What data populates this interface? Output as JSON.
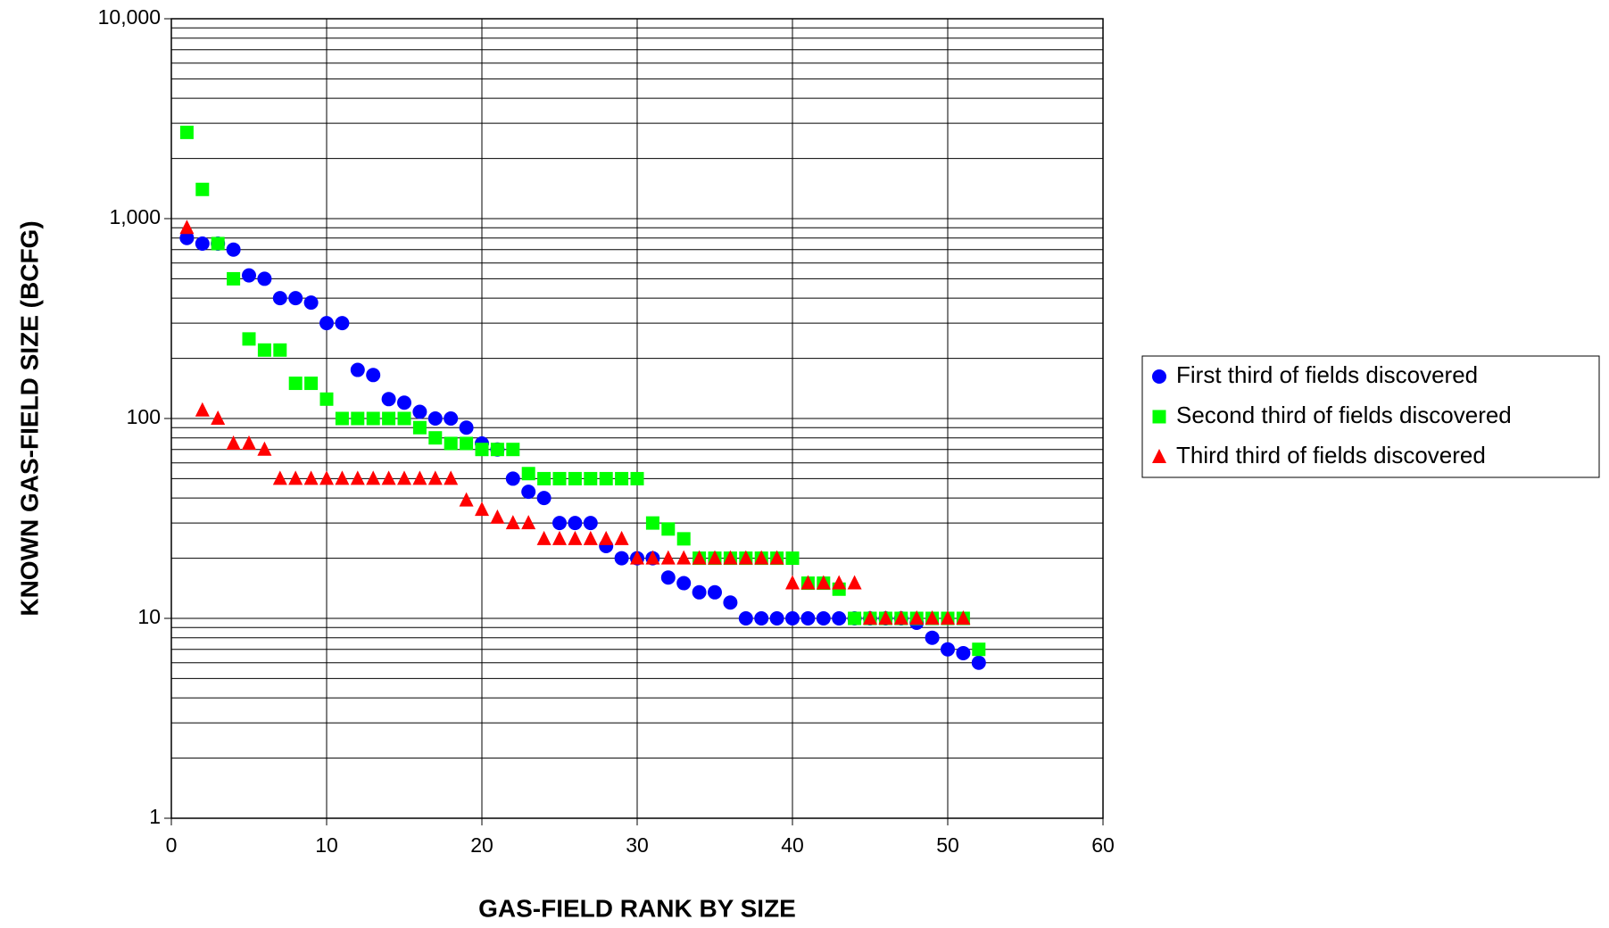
{
  "chart_data": {
    "type": "scatter",
    "x_label": "GAS-FIELD RANK BY SIZE",
    "y_label": "KNOWN GAS-FIELD SIZE (BCFG)",
    "x": [
      1,
      2,
      3,
      4,
      5,
      6,
      7,
      8,
      9,
      10,
      11,
      12,
      13,
      14,
      15,
      16,
      17,
      18,
      19,
      20,
      21,
      22,
      23,
      24,
      25,
      26,
      27,
      28,
      29,
      30,
      31,
      32,
      33,
      34,
      35,
      36,
      37,
      38,
      39,
      40,
      41,
      42,
      43,
      44,
      45,
      46,
      47,
      48,
      49,
      50,
      51,
      52
    ],
    "series": [
      {
        "name": "First third of fields discovered",
        "color": "#0000ff",
        "marker": "circle",
        "values": [
          800,
          750,
          750,
          700,
          520,
          500,
          400,
          400,
          380,
          300,
          300,
          175,
          165,
          125,
          120,
          108,
          100,
          100,
          90,
          75,
          70,
          50,
          43,
          40,
          30,
          30,
          30,
          23,
          20,
          20,
          20,
          16,
          15,
          13.5,
          13.5,
          12,
          10,
          10,
          10,
          10,
          10,
          10,
          10,
          10,
          10,
          10,
          10,
          9.5,
          8,
          7,
          6.7,
          6
        ]
      },
      {
        "name": "Second third of fields discovered",
        "color": "#00ff00",
        "marker": "square",
        "values": [
          2700,
          1400,
          750,
          500,
          250,
          220,
          220,
          150,
          150,
          125,
          100,
          100,
          100,
          100,
          100,
          90,
          80,
          75,
          75,
          70,
          70,
          70,
          53,
          50,
          50,
          50,
          50,
          50,
          50,
          50,
          30,
          28,
          25,
          20,
          20,
          20,
          20,
          20,
          20,
          20,
          15,
          15,
          14,
          10,
          10,
          10,
          10,
          10,
          10,
          10,
          10,
          7
        ]
      },
      {
        "name": "Third third of fields discovered",
        "color": "#ff0000",
        "marker": "triangle",
        "values": [
          900,
          110,
          100,
          75,
          75,
          70,
          50,
          50,
          50,
          50,
          50,
          50,
          50,
          50,
          50,
          50,
          50,
          50,
          39,
          35,
          32,
          30,
          30,
          25,
          25,
          25,
          25,
          25,
          25,
          20,
          20,
          20,
          20,
          20,
          20,
          20,
          20,
          20,
          20,
          15,
          15,
          15,
          15,
          15,
          10,
          10,
          10,
          10,
          10,
          10,
          10,
          null
        ]
      }
    ],
    "xlim": [
      0,
      60
    ],
    "xticks": [
      0,
      10,
      20,
      30,
      40,
      50,
      60
    ],
    "ylim": [
      1,
      10000
    ],
    "yticks": [
      1,
      10,
      100,
      {
        "value": 1000,
        "label": "1,000"
      },
      {
        "value": 10000,
        "label": "10,000"
      }
    ],
    "log_y": true,
    "grid": true,
    "minor_grid": true,
    "legend": "right"
  }
}
